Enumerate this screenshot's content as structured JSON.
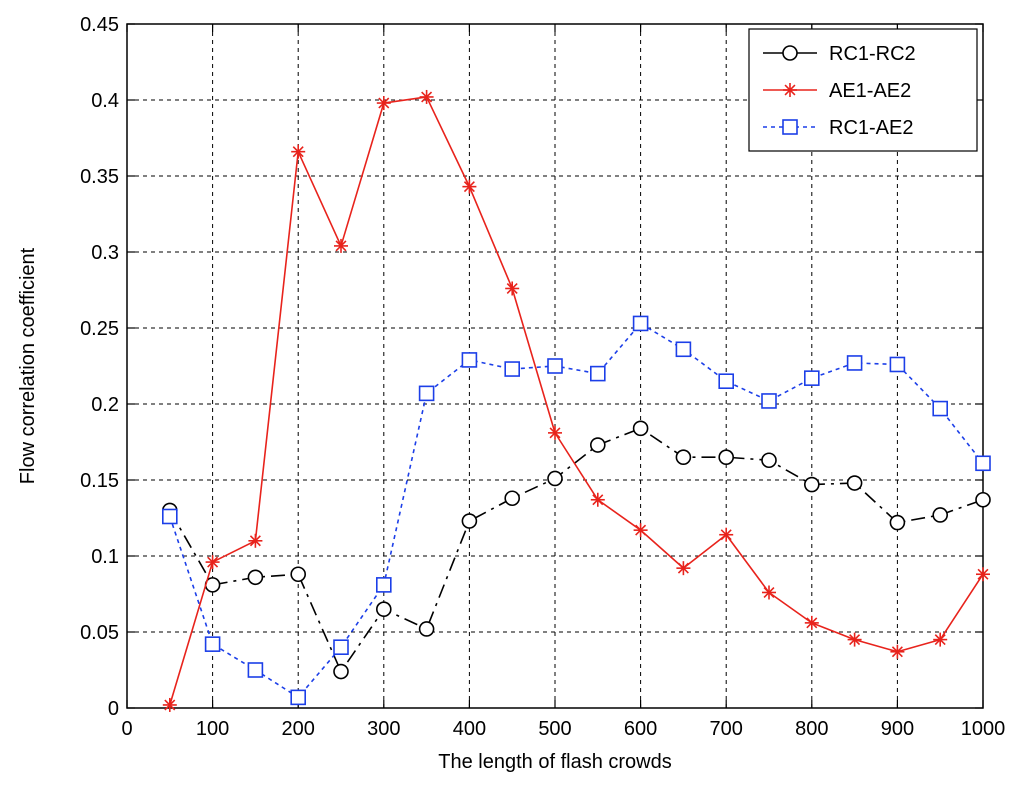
{
  "chart_data": {
    "type": "line",
    "title": "",
    "xlabel": "The length of flash crowds",
    "ylabel": "Flow correlation coefficient",
    "xlim": [
      0,
      1000
    ],
    "ylim": [
      0,
      0.45
    ],
    "xticks": [
      0,
      100,
      200,
      300,
      400,
      500,
      600,
      700,
      800,
      900,
      1000
    ],
    "xtick_labels": [
      "0",
      "100",
      "200",
      "300",
      "400",
      "500",
      "600",
      "700",
      "800",
      "900",
      "1000"
    ],
    "yticks": [
      0,
      0.05,
      0.1,
      0.15,
      0.2,
      0.25,
      0.3,
      0.35,
      0.4,
      0.45
    ],
    "ytick_labels": [
      "0",
      "0.05",
      "0.1",
      "0.15",
      "0.2",
      "0.25",
      "0.3",
      "0.35",
      "0.4",
      "0.45"
    ],
    "grid": true,
    "legend_position": "top-right",
    "x": [
      50,
      100,
      150,
      200,
      250,
      300,
      350,
      400,
      450,
      500,
      550,
      600,
      650,
      700,
      750,
      800,
      850,
      900,
      950,
      1000
    ],
    "series": [
      {
        "name": "RC1-RC2",
        "color": "#000000",
        "line_style": "dashdot",
        "marker": "circle",
        "values": [
          0.13,
          0.081,
          0.086,
          0.088,
          0.024,
          0.065,
          0.052,
          0.123,
          0.138,
          0.151,
          0.173,
          0.184,
          0.165,
          0.165,
          0.163,
          0.147,
          0.148,
          0.122,
          0.127,
          0.137
        ]
      },
      {
        "name": "AE1-AE2",
        "color": "#e8231c",
        "line_style": "solid",
        "marker": "star",
        "values": [
          0.002,
          0.096,
          0.11,
          0.366,
          0.304,
          0.398,
          0.402,
          0.343,
          0.276,
          0.181,
          0.137,
          0.117,
          0.092,
          0.114,
          0.076,
          0.056,
          0.045,
          0.037,
          0.045,
          0.088
        ]
      },
      {
        "name": "RC1-AE2",
        "color": "#1c3fe8",
        "line_style": "dotted",
        "marker": "square",
        "values": [
          0.126,
          0.042,
          0.025,
          0.007,
          0.04,
          0.081,
          0.207,
          0.229,
          0.223,
          0.225,
          0.22,
          0.253,
          0.236,
          0.215,
          0.202,
          0.217,
          0.227,
          0.226,
          0.197,
          0.161
        ]
      }
    ]
  }
}
